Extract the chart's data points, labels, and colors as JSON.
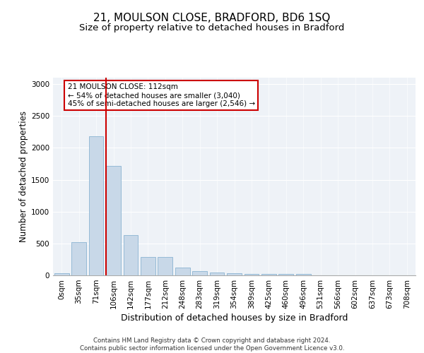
{
  "title1": "21, MOULSON CLOSE, BRADFORD, BD6 1SQ",
  "title2": "Size of property relative to detached houses in Bradford",
  "xlabel": "Distribution of detached houses by size in Bradford",
  "ylabel": "Number of detached properties",
  "bar_categories": [
    "0sqm",
    "35sqm",
    "71sqm",
    "106sqm",
    "142sqm",
    "177sqm",
    "212sqm",
    "248sqm",
    "283sqm",
    "319sqm",
    "354sqm",
    "389sqm",
    "425sqm",
    "460sqm",
    "496sqm",
    "531sqm",
    "566sqm",
    "602sqm",
    "637sqm",
    "673sqm",
    "708sqm"
  ],
  "bar_values": [
    30,
    520,
    2180,
    1720,
    635,
    285,
    285,
    120,
    65,
    40,
    35,
    25,
    25,
    20,
    20,
    0,
    0,
    0,
    0,
    0,
    0
  ],
  "bar_color": "#c8d8e8",
  "bar_edgecolor": "#7aaacc",
  "vline_color": "#cc0000",
  "annotation_text": "21 MOULSON CLOSE: 112sqm\n← 54% of detached houses are smaller (3,040)\n45% of semi-detached houses are larger (2,546) →",
  "annotation_box_edgecolor": "#cc0000",
  "annotation_box_facecolor": "#ffffff",
  "ylim": [
    0,
    3100
  ],
  "yticks": [
    0,
    500,
    1000,
    1500,
    2000,
    2500,
    3000
  ],
  "background_color": "#eef2f7",
  "footer_text": "Contains HM Land Registry data © Crown copyright and database right 2024.\nContains public sector information licensed under the Open Government Licence v3.0.",
  "title1_fontsize": 11,
  "title2_fontsize": 9.5,
  "xlabel_fontsize": 9,
  "ylabel_fontsize": 8.5,
  "tick_fontsize": 7.5,
  "annot_fontsize": 7.5,
  "footer_fontsize": 6.2
}
